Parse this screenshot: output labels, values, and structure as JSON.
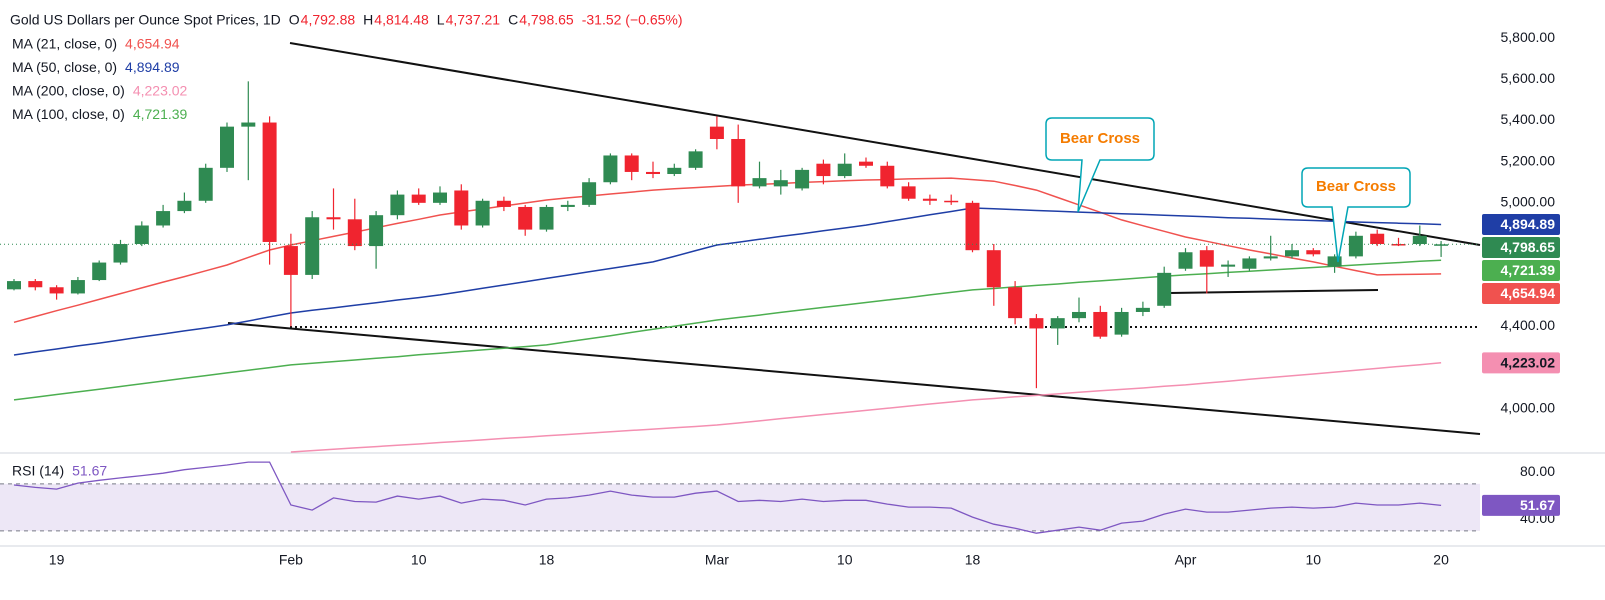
{
  "chart_data": [
    {
      "type": "candlestick",
      "title": "Gold US Dollars per Ounce Spot Prices, 1D",
      "ohlc": [
        {
          "key": "O",
          "label": "4,792.88"
        },
        {
          "key": "H",
          "label": "4,814.48"
        },
        {
          "key": "L",
          "label": "4,737.21"
        },
        {
          "key": "C",
          "label": "4,798.65"
        }
      ],
      "change": "-31.52 (−0.65%)",
      "up_color": "#2f8a52",
      "down_color": "#f0242f",
      "categories": [
        null,
        null,
        "19",
        null,
        null,
        null,
        null,
        null,
        null,
        null,
        null,
        null,
        null,
        "Feb",
        null,
        null,
        null,
        null,
        null,
        "10",
        null,
        null,
        null,
        null,
        null,
        "18",
        null,
        null,
        null,
        null,
        null,
        null,
        null,
        "Mar",
        null,
        null,
        null,
        null,
        null,
        "10",
        null,
        null,
        null,
        null,
        null,
        "18",
        null,
        null,
        null,
        null,
        null,
        null,
        null,
        null,
        null,
        "Apr",
        null,
        null,
        null,
        null,
        null,
        "10",
        null,
        null,
        null,
        null,
        null,
        "20"
      ],
      "open": [
        4580,
        4620,
        4590,
        4560,
        4625,
        4710,
        4800,
        4890,
        4960,
        5010,
        5170,
        5370,
        5390,
        4790,
        4650,
        4930,
        4920,
        4790,
        4940,
        5040,
        5000,
        5060,
        4890,
        5010,
        4980,
        4870,
        4980,
        4990,
        5100,
        5230,
        5150,
        5140,
        5170,
        5370,
        5310,
        5080,
        5080,
        5070,
        5190,
        5130,
        5200,
        5180,
        5080,
        5020,
        5010,
        5000,
        4770,
        4590,
        4440,
        4390,
        4440,
        4470,
        4360,
        4470,
        4500,
        4680,
        4770,
        4690,
        4680,
        4730,
        4740,
        4770,
        4690,
        4740,
        4850,
        4800,
        4800,
        4792.88
      ],
      "high": [
        4630,
        4630,
        4600,
        4640,
        4720,
        4820,
        4910,
        4990,
        5050,
        5190,
        5390,
        5590,
        5420,
        4850,
        4960,
        5070,
        5020,
        4960,
        5060,
        5070,
        5080,
        5090,
        5020,
        5030,
        4990,
        4990,
        5010,
        5120,
        5240,
        5240,
        5200,
        5190,
        5260,
        5420,
        5380,
        5200,
        5160,
        5170,
        5210,
        5240,
        5220,
        5200,
        5100,
        5040,
        5040,
        5010,
        4800,
        4620,
        4460,
        4450,
        4540,
        4500,
        4490,
        4520,
        4690,
        4780,
        4790,
        4720,
        4740,
        4840,
        4800,
        4780,
        4750,
        4860,
        4870,
        4830,
        4890,
        4814.48
      ],
      "low": [
        4575,
        4575,
        4530,
        4555,
        4620,
        4700,
        4790,
        4880,
        4950,
        5000,
        5150,
        5110,
        4700,
        4400,
        4630,
        4870,
        4770,
        4680,
        4920,
        4990,
        4990,
        4870,
        4880,
        4960,
        4840,
        4860,
        4960,
        4980,
        5090,
        5110,
        5120,
        5130,
        5160,
        5260,
        5000,
        5070,
        5040,
        5060,
        5090,
        5120,
        5170,
        5070,
        5010,
        4990,
        4990,
        4760,
        4500,
        4410,
        4100,
        4310,
        4420,
        4340,
        4350,
        4450,
        4490,
        4670,
        4560,
        4640,
        4670,
        4720,
        4730,
        4740,
        4660,
        4730,
        4790,
        4790,
        4790,
        4737.21
      ],
      "close": [
        4620,
        4590,
        4560,
        4625,
        4710,
        4800,
        4890,
        4960,
        5010,
        5170,
        5370,
        5390,
        4810,
        4650,
        4930,
        4920,
        4790,
        4940,
        5040,
        5000,
        5050,
        4890,
        5010,
        4980,
        4870,
        4980,
        4990,
        5100,
        5230,
        5150,
        5140,
        5170,
        5250,
        5310,
        5080,
        5120,
        5110,
        5160,
        5130,
        5190,
        5180,
        5080,
        5020,
        5010,
        5005,
        4770,
        4590,
        4440,
        4390,
        4440,
        4470,
        4350,
        4470,
        4490,
        4660,
        4760,
        4690,
        4700,
        4730,
        4740,
        4770,
        4750,
        4740,
        4840,
        4800,
        4795,
        4840,
        4798.65
      ],
      "series": [
        {
          "name": "MA (21, close, 0)",
          "color": "#f0524f",
          "last_label": "4,654.94",
          "values": [
            4420,
            4448,
            4476,
            4503,
            4531,
            4559,
            4587,
            4615,
            4642,
            4670,
            4698,
            4735,
            4771,
            4795,
            4816,
            4837,
            4858,
            4879,
            4900,
            4920,
            4941,
            4956,
            4970,
            4985,
            4999,
            5014,
            5024,
            5033,
            5043,
            5052,
            5062,
            5068,
            5074,
            5080,
            5086,
            5090,
            5094,
            5099,
            5103,
            5107,
            5111,
            5113,
            5116,
            5118,
            5120,
            5113,
            5105,
            5084,
            5062,
            5026,
            4990,
            4954,
            4917,
            4889,
            4862,
            4834,
            4813,
            4792,
            4771,
            4752,
            4732,
            4713,
            4692,
            4671,
            4650,
            4652,
            4653,
            4654.94
          ]
        },
        {
          "name": "MA (50, close, 0)",
          "color": "#1f3ea6",
          "last_label": "4,894.89",
          "values": [
            4261,
            4276,
            4290,
            4305,
            4319,
            4334,
            4349,
            4363,
            4378,
            4392,
            4407,
            4426,
            4446,
            4465,
            4478,
            4490,
            4503,
            4515,
            4528,
            4540,
            4553,
            4569,
            4585,
            4601,
            4617,
            4633,
            4649,
            4665,
            4681,
            4697,
            4713,
            4740,
            4768,
            4795,
            4809,
            4823,
            4837,
            4850,
            4864,
            4878,
            4892,
            4909,
            4925,
            4942,
            4958,
            4975,
            4971,
            4967,
            4963,
            4959,
            4955,
            4951,
            4947,
            4944,
            4940,
            4936,
            4932,
            4928,
            4925,
            4921,
            4917,
            4914,
            4911,
            4907,
            4904,
            4901,
            4898,
            4894.89
          ]
        },
        {
          "name": "MA (200, close, 0)",
          "color": "#f48fb1",
          "last_label": "4,223.02",
          "values": [
            null,
            null,
            null,
            null,
            null,
            null,
            null,
            null,
            null,
            null,
            null,
            null,
            null,
            3790,
            3797,
            3803,
            3810,
            3816,
            3823,
            3829,
            3836,
            3842,
            3849,
            3856,
            3862,
            3869,
            3875,
            3882,
            3888,
            3895,
            3901,
            3908,
            3914,
            3921,
            3931,
            3941,
            3952,
            3962,
            3972,
            3982,
            3992,
            4002,
            4013,
            4023,
            4033,
            4043,
            4050,
            4058,
            4065,
            4072,
            4080,
            4087,
            4094,
            4101,
            4109,
            4116,
            4125,
            4134,
            4143,
            4152,
            4160,
            4169,
            4178,
            4187,
            4196,
            4205,
            4214,
            4223.02
          ]
        },
        {
          "name": "MA (100, close, 0)",
          "color": "#4caf50",
          "last_label": "4,721.39",
          "values": [
            4043,
            4056,
            4069,
            4082,
            4095,
            4108,
            4121,
            4135,
            4148,
            4161,
            4174,
            4187,
            4200,
            4213,
            4221,
            4229,
            4237,
            4245,
            4253,
            4262,
            4270,
            4278,
            4286,
            4294,
            4302,
            4310,
            4325,
            4340,
            4355,
            4371,
            4386,
            4401,
            4416,
            4431,
            4443,
            4455,
            4468,
            4480,
            4492,
            4504,
            4516,
            4528,
            4540,
            4553,
            4565,
            4577,
            4584,
            4592,
            4599,
            4606,
            4614,
            4621,
            4628,
            4636,
            4643,
            4650,
            4656,
            4662,
            4668,
            4674,
            4680,
            4686,
            4692,
            4698,
            4704,
            4710,
            4716,
            4721.39
          ]
        }
      ],
      "ylim": [
        3790,
        5985
      ],
      "yticks": [
        {
          "value": 4000,
          "label": "4,000.00"
        },
        {
          "value": 4400,
          "label": "4,400.00"
        },
        {
          "value": 5000,
          "label": "5,000.00"
        },
        {
          "value": 5200,
          "label": "5,200.00"
        },
        {
          "value": 5400,
          "label": "5,400.00"
        },
        {
          "value": 5600,
          "label": "5,600.00"
        },
        {
          "value": 5800,
          "label": "5,800.00"
        }
      ],
      "annotations": [
        "Bear Cross",
        "Bear Cross"
      ]
    },
    {
      "type": "line",
      "name": "RSI (14)",
      "color": "#7e57c2",
      "values": [
        69,
        67,
        65.5,
        70.6,
        73,
        75,
        77,
        79,
        82,
        84,
        86,
        88.5,
        88.5,
        52,
        47.7,
        58,
        55,
        54.5,
        59.6,
        57,
        59.6,
        53.6,
        57,
        56,
        52,
        57,
        58,
        60.4,
        63.8,
        60.4,
        58.7,
        58.7,
        62,
        63.8,
        55,
        56,
        55,
        57,
        55,
        56,
        56,
        52.8,
        50.2,
        50.2,
        49.4,
        41.7,
        35.7,
        32.3,
        28,
        30.6,
        33.2,
        30.6,
        36.6,
        38.3,
        44.3,
        48.5,
        46,
        46,
        47.7,
        49.4,
        50.2,
        49.4,
        50.2,
        53.6,
        52,
        52,
        53.6,
        51.67
      ],
      "ylim": [
        18,
        94.5
      ],
      "yticks": [
        {
          "value": 40,
          "label": "40.00"
        },
        {
          "value": 80,
          "label": "80.00"
        }
      ],
      "band": [
        30,
        70
      ]
    }
  ]
}
